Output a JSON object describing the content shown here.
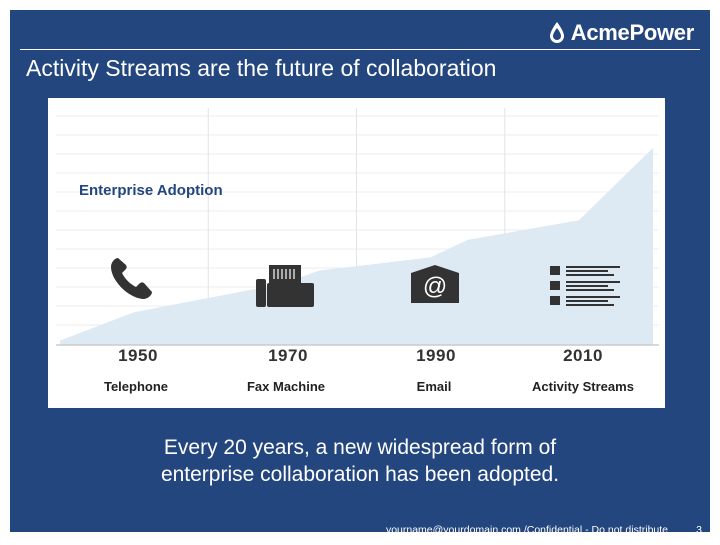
{
  "brand": {
    "name": "AcmePower"
  },
  "slide": {
    "title": "Activity Streams are the future of collaboration",
    "chart_label": "Enterprise Adoption",
    "caption_line1": "Every 20 years, a new widespread form of",
    "caption_line2": "enterprise collaboration has been adopted."
  },
  "chart_data": {
    "type": "area",
    "x": [
      1940,
      1950,
      1970,
      1975,
      1990,
      1995,
      2010,
      2020
    ],
    "y": [
      2,
      15,
      28,
      34,
      40,
      48,
      57,
      90
    ],
    "title": "Enterprise Adoption",
    "categories": [
      "1950",
      "1970",
      "1990",
      "2010"
    ],
    "category_labels": [
      "Telephone",
      "Fax Machine",
      "Email",
      "Activity Streams"
    ],
    "icons": [
      "telephone-icon",
      "fax-machine-icon",
      "email-icon",
      "activity-stream-icon"
    ],
    "email_icon_glyph": "@",
    "grid": true,
    "fill_color": "#dde9f3"
  },
  "footer": {
    "email": "yourname@yourdomain.com",
    "notice": " /Confidential - Do not distribute",
    "page": "3"
  }
}
